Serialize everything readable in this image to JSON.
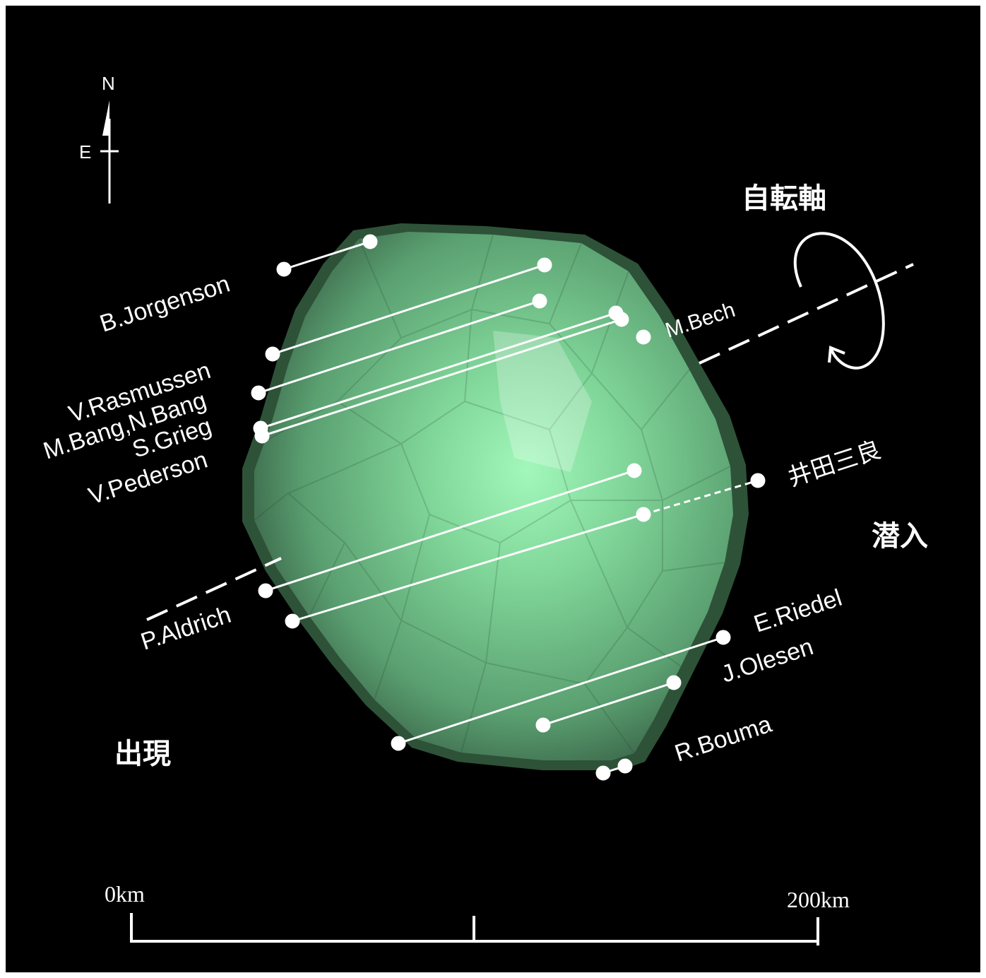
{
  "compass": {
    "north": "N",
    "east": "E"
  },
  "rotation_axis_label": "自転軸",
  "disappearance_label": "潜入",
  "reappearance_label": "出現",
  "observers": {
    "b_jorgenson": "B.Jorgenson",
    "v_rasmussen": "V.Rasmussen",
    "m_bang_n_bang": "M.Bang,N.Bang",
    "s_grieg": "S.Grieg",
    "v_pederson": "V.Pederson",
    "m_bech": "M.Bech",
    "ida_sanryo": "井田三良",
    "p_aldrich": "P.Aldrich",
    "e_riedel": "E.Riedel",
    "j_olesen": "J.Olesen",
    "r_bouma": "R.Bouma"
  },
  "scale": {
    "start": "0km",
    "end": "200km"
  },
  "colors": {
    "background": "#000000",
    "body_light": "#9cf6b6",
    "body_dark": "#3b6a4c",
    "chords": "#ffffff"
  }
}
